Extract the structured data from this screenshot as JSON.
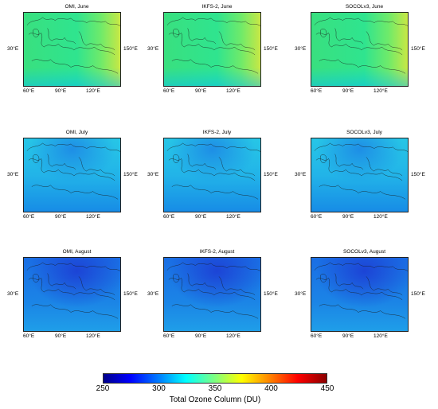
{
  "figure": {
    "panels": [
      {
        "title": "OMI, June",
        "month": "June",
        "source": "OMI"
      },
      {
        "title": "IKFS-2, June",
        "month": "June",
        "source": "IKFS-2"
      },
      {
        "title": "SOCOLv3, June",
        "month": "June",
        "source": "SOCOLv3"
      },
      {
        "title": "OMI, July",
        "month": "July",
        "source": "OMI"
      },
      {
        "title": "IKFS-2, July",
        "month": "July",
        "source": "IKFS-2"
      },
      {
        "title": "SOCOLv3, July",
        "month": "July",
        "source": "SOCOLv3"
      },
      {
        "title": "OMI, August",
        "month": "August",
        "source": "OMI"
      },
      {
        "title": "IKFS-2, August",
        "month": "August",
        "source": "IKFS-2"
      },
      {
        "title": "SOCOLv3, August",
        "month": "August",
        "source": "SOCOLv3"
      }
    ],
    "axis_labels": {
      "lat_left": "30°E",
      "lat_right": "150°E",
      "lon": [
        "60°E",
        "90°E",
        "120°E"
      ]
    },
    "colorbar": {
      "title": "Total Ozone Column (DU)",
      "ticks": [
        "250",
        "300",
        "350",
        "400",
        "450"
      ],
      "range": [
        250,
        450
      ],
      "colormap": "jet"
    },
    "colors": {
      "june_base": "#39e07f",
      "june_east": "#c8e845",
      "july_base": "#22b4e8",
      "july_north": "#1e8ee6",
      "august_base": "#1b84e6",
      "august_core": "#1c44d6",
      "coastline": "#1a1a1a"
    }
  }
}
